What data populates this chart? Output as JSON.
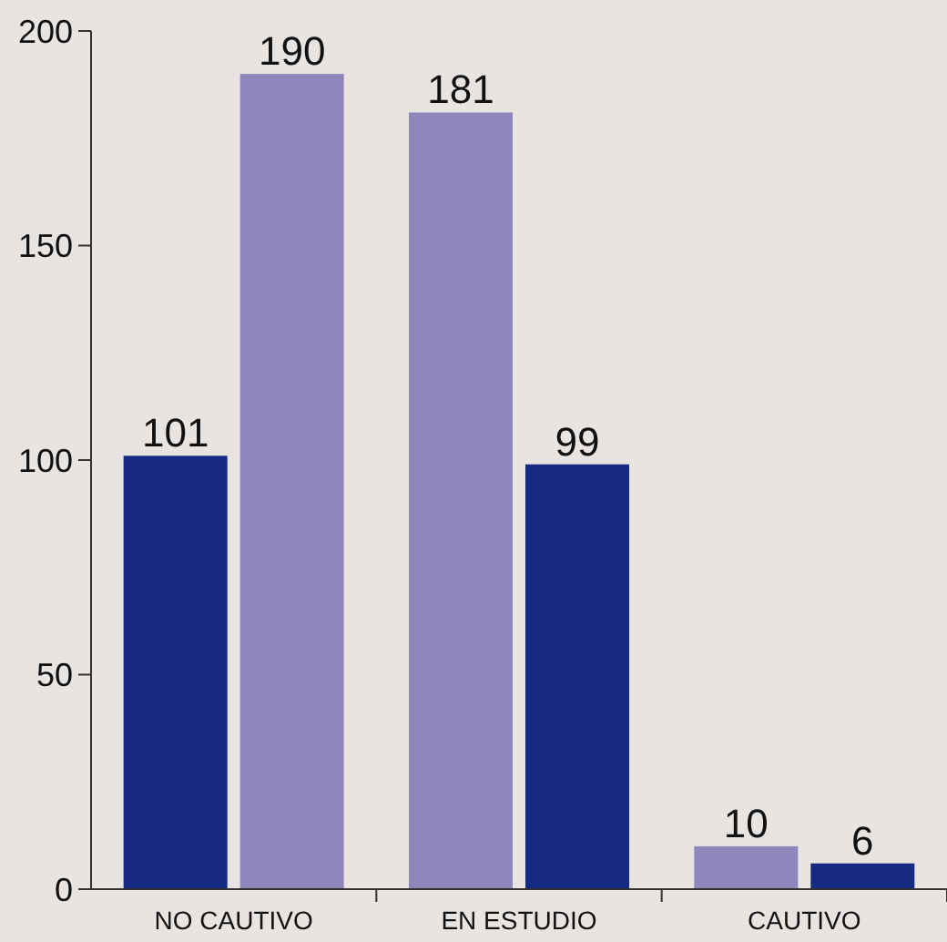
{
  "chart_data": {
    "type": "bar",
    "categories": [
      "NO CAUTIVO",
      "EN ESTUDIO",
      "CAUTIVO"
    ],
    "series": [
      {
        "colors": [
          "#152a80",
          "#8f87bb",
          "#8f87bb"
        ],
        "values": [
          101,
          181,
          10
        ]
      },
      {
        "colors": [
          "#8f87bb",
          "#152a80",
          "#152a80"
        ],
        "values": [
          190,
          99,
          6
        ]
      }
    ],
    "ylim": [
      0,
      200
    ],
    "yticks": [
      0,
      50,
      100,
      150,
      200
    ],
    "data_labels": true
  }
}
